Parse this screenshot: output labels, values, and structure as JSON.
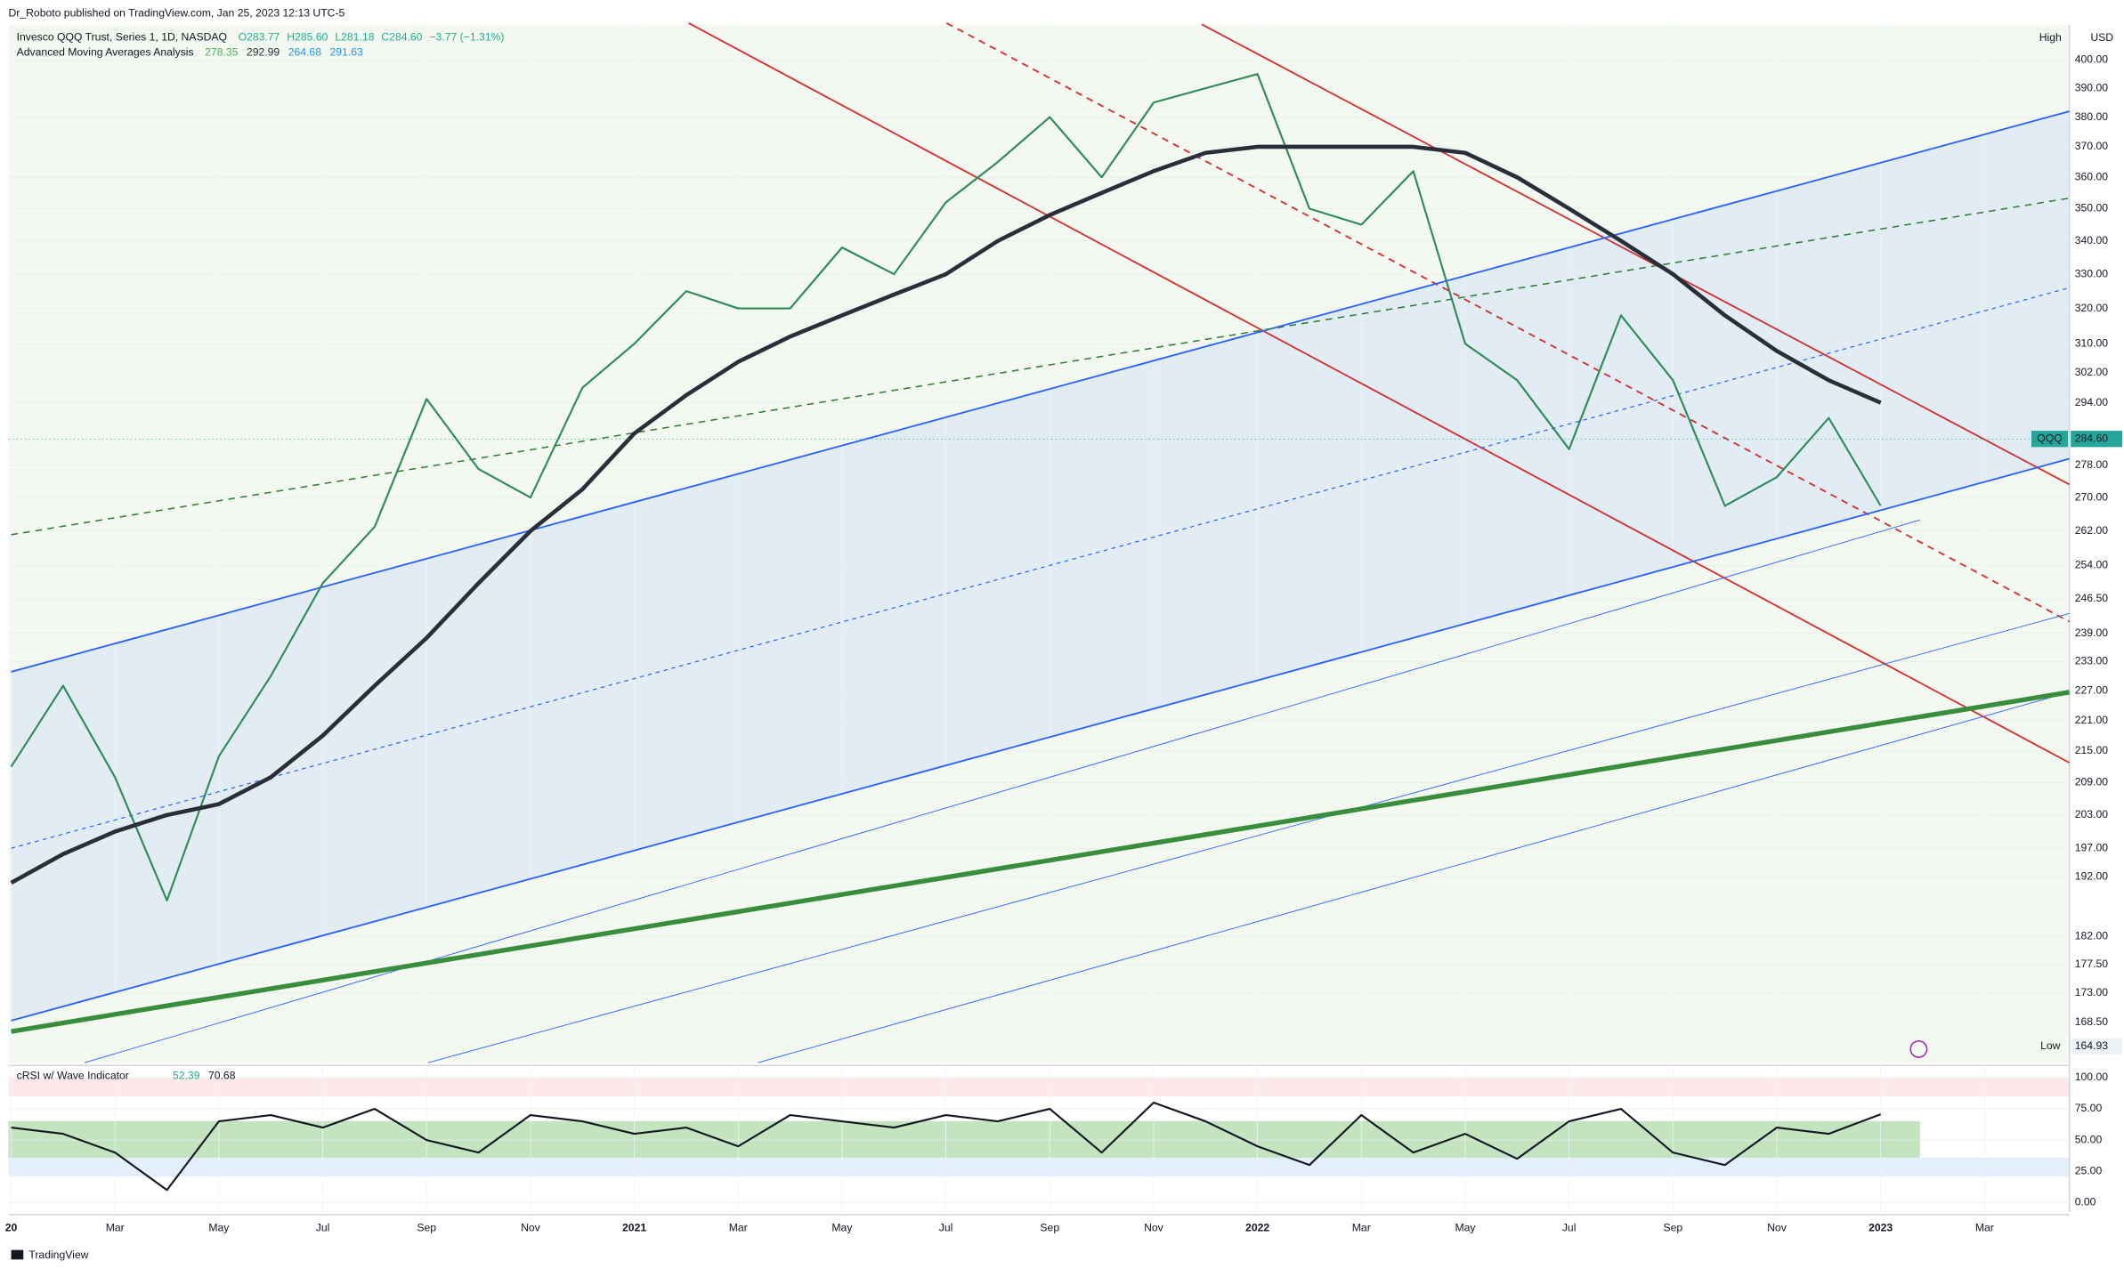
{
  "header": {
    "publisher": "Dr_Roboto published on TradingView.com, Jan 25, 2023 12:13 UTC-5"
  },
  "chart_data": [
    {
      "type": "line",
      "title": "Invesco QQQ Trust, Series 1, 1D, NASDAQ",
      "ohlc_labels": [
        "O283.77",
        "H285.60",
        "L281.18",
        "C284.60",
        "−3.77 (−1.31%)"
      ],
      "currency": "USD",
      "log_scale": true,
      "grid": true,
      "ylim": [
        162.5,
        413
      ],
      "yticks": [
        {
          "value": 400,
          "label": "400.00"
        },
        {
          "value": 390,
          "label": "390.00"
        },
        {
          "value": 380,
          "label": "380.00"
        },
        {
          "value": 370,
          "label": "370.00"
        },
        {
          "value": 360,
          "label": "360.00"
        },
        {
          "value": 350,
          "label": "350.00"
        },
        {
          "value": 340,
          "label": "340.00"
        },
        {
          "value": 330,
          "label": "330.00"
        },
        {
          "value": 320,
          "label": "320.00"
        },
        {
          "value": 310,
          "label": "310.00"
        },
        {
          "value": 302,
          "label": "302.00"
        },
        {
          "value": 294,
          "label": "294.00"
        },
        {
          "value": 278,
          "label": "278.00"
        },
        {
          "value": 270,
          "label": "270.00"
        },
        {
          "value": 262,
          "label": "262.00"
        },
        {
          "value": 254,
          "label": "254.00"
        },
        {
          "value": 246.5,
          "label": "246.50"
        },
        {
          "value": 239,
          "label": "239.00"
        },
        {
          "value": 233,
          "label": "233.00"
        },
        {
          "value": 227,
          "label": "227.00"
        },
        {
          "value": 221,
          "label": "221.00"
        },
        {
          "value": 215,
          "label": "215.00"
        },
        {
          "value": 209,
          "label": "209.00"
        },
        {
          "value": 203,
          "label": "203.00"
        },
        {
          "value": 197,
          "label": "197.00"
        },
        {
          "value": 192,
          "label": "192.00"
        },
        {
          "value": 182,
          "label": "182.00"
        },
        {
          "value": 177.5,
          "label": "177.50"
        },
        {
          "value": 173,
          "label": "173.00"
        },
        {
          "value": 168.5,
          "label": "168.50"
        }
      ],
      "high_label": "High",
      "low_label": "Low",
      "low": {
        "value": 164.93,
        "label": "164.93"
      },
      "last": {
        "value": 284.6,
        "label": "284.60"
      },
      "categories": [
        "20",
        null,
        "Mar",
        null,
        "May",
        null,
        "Jul",
        null,
        "Sep",
        null,
        "Nov",
        null,
        "2021",
        null,
        "Mar",
        null,
        "May",
        null,
        "Jul",
        null,
        "Sep",
        null,
        "Nov",
        null,
        "2022",
        null,
        "Mar",
        null,
        "May",
        null,
        "Jul",
        null,
        "Sep",
        null,
        "Nov",
        null,
        "2023",
        null,
        "Mar",
        null
      ],
      "series": [
        {
          "name": "QQQ",
          "color": "#2e8b57",
          "values": [
            212,
            228,
            210,
            188,
            214,
            230,
            250,
            263,
            295,
            277,
            270,
            298,
            310,
            325,
            320,
            320,
            338,
            330,
            352,
            365,
            380,
            360,
            385,
            390,
            395,
            350,
            345,
            362,
            310,
            300,
            282,
            318,
            300,
            268,
            275,
            290,
            268,
            null,
            null,
            null
          ]
        },
        {
          "name": "Advanced Moving Averages Analysis",
          "color": "#2a2e39",
          "values": [
            191,
            196,
            200,
            203,
            205,
            210,
            218,
            228,
            238,
            250,
            262,
            272,
            286,
            296,
            305,
            312,
            318,
            324,
            330,
            340,
            348,
            355,
            362,
            368,
            370,
            370,
            370,
            370,
            368,
            360,
            350,
            340,
            330,
            318,
            308,
            300,
            294,
            null,
            null,
            null
          ]
        }
      ],
      "indicator_values": [
        278.35,
        292.99,
        264.68,
        291.63
      ]
    },
    {
      "type": "line",
      "title": "cRSI w/ Wave Indicator",
      "grid": true,
      "ylim": [
        -7.6,
        107.6
      ],
      "yticks": [
        {
          "value": 100,
          "label": "100.00"
        },
        {
          "value": 75,
          "label": "75.00"
        },
        {
          "value": 50,
          "label": "50.00"
        },
        {
          "value": 25,
          "label": "25.00"
        },
        {
          "value": 0,
          "label": "0.00"
        }
      ],
      "indicator_values": [
        52.39,
        70.68
      ],
      "series": [
        {
          "color": "#131722",
          "values": [
            60,
            55,
            40,
            10,
            65,
            70,
            60,
            75,
            50,
            40,
            70,
            65,
            55,
            60,
            45,
            70,
            65,
            60,
            70,
            65,
            75,
            40,
            80,
            65,
            45,
            30,
            70,
            40,
            55,
            35,
            65,
            75,
            40,
            30,
            60,
            55,
            70.68,
            null,
            null,
            null
          ]
        }
      ]
    }
  ],
  "footer": {
    "brand": "TradingView"
  }
}
